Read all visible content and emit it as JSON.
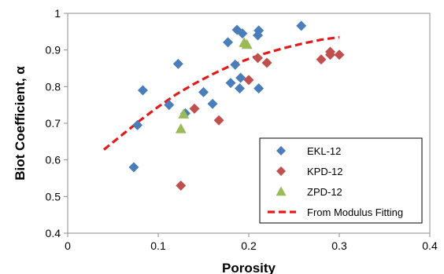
{
  "chart_data": {
    "type": "scatter",
    "xlabel": "Porosity",
    "ylabel": "Biot Coefficient, α",
    "xlim": [
      0,
      0.4
    ],
    "ylim": [
      0.4,
      1.0
    ],
    "xticks": [
      "0",
      "0.1",
      "0.2",
      "0.3",
      "0.4"
    ],
    "yticks": [
      "0.4",
      "0.5",
      "0.6",
      "0.7",
      "0.8",
      "0.9",
      "1"
    ],
    "grid": false,
    "legend_position": "bottom-right",
    "series": [
      {
        "name": "EKL-12",
        "marker": "diamond",
        "color": "#4a7ebb",
        "points": [
          [
            0.073,
            0.58
          ],
          [
            0.077,
            0.695
          ],
          [
            0.083,
            0.79
          ],
          [
            0.112,
            0.75
          ],
          [
            0.122,
            0.862
          ],
          [
            0.13,
            0.727
          ],
          [
            0.15,
            0.785
          ],
          [
            0.16,
            0.753
          ],
          [
            0.177,
            0.921
          ],
          [
            0.18,
            0.81
          ],
          [
            0.185,
            0.86
          ],
          [
            0.187,
            0.955
          ],
          [
            0.19,
            0.795
          ],
          [
            0.191,
            0.824
          ],
          [
            0.193,
            0.945
          ],
          [
            0.21,
            0.94
          ],
          [
            0.211,
            0.953
          ],
          [
            0.211,
            0.795
          ],
          [
            0.258,
            0.966
          ]
        ]
      },
      {
        "name": "KPD-12",
        "marker": "diamond",
        "color": "#c0504d",
        "points": [
          [
            0.125,
            0.53
          ],
          [
            0.14,
            0.74
          ],
          [
            0.167,
            0.708
          ],
          [
            0.2,
            0.818
          ],
          [
            0.21,
            0.878
          ],
          [
            0.22,
            0.865
          ],
          [
            0.28,
            0.874
          ],
          [
            0.29,
            0.895
          ],
          [
            0.29,
            0.887
          ],
          [
            0.3,
            0.887
          ]
        ]
      },
      {
        "name": "ZPD-12",
        "marker": "triangle",
        "color": "#9bbb59",
        "points": [
          [
            0.125,
            0.685
          ],
          [
            0.128,
            0.725
          ],
          [
            0.195,
            0.92
          ],
          [
            0.198,
            0.915
          ]
        ]
      },
      {
        "name": "From Modulus Fitting",
        "type": "line",
        "style": "dashed",
        "color": "#e31a1c",
        "points": [
          [
            0.04,
            0.628
          ],
          [
            0.06,
            0.668
          ],
          [
            0.08,
            0.708
          ],
          [
            0.1,
            0.745
          ],
          [
            0.12,
            0.779
          ],
          [
            0.14,
            0.808
          ],
          [
            0.16,
            0.834
          ],
          [
            0.18,
            0.857
          ],
          [
            0.2,
            0.876
          ],
          [
            0.22,
            0.892
          ],
          [
            0.24,
            0.906
          ],
          [
            0.26,
            0.918
          ],
          [
            0.28,
            0.928
          ],
          [
            0.3,
            0.935
          ]
        ]
      }
    ]
  }
}
